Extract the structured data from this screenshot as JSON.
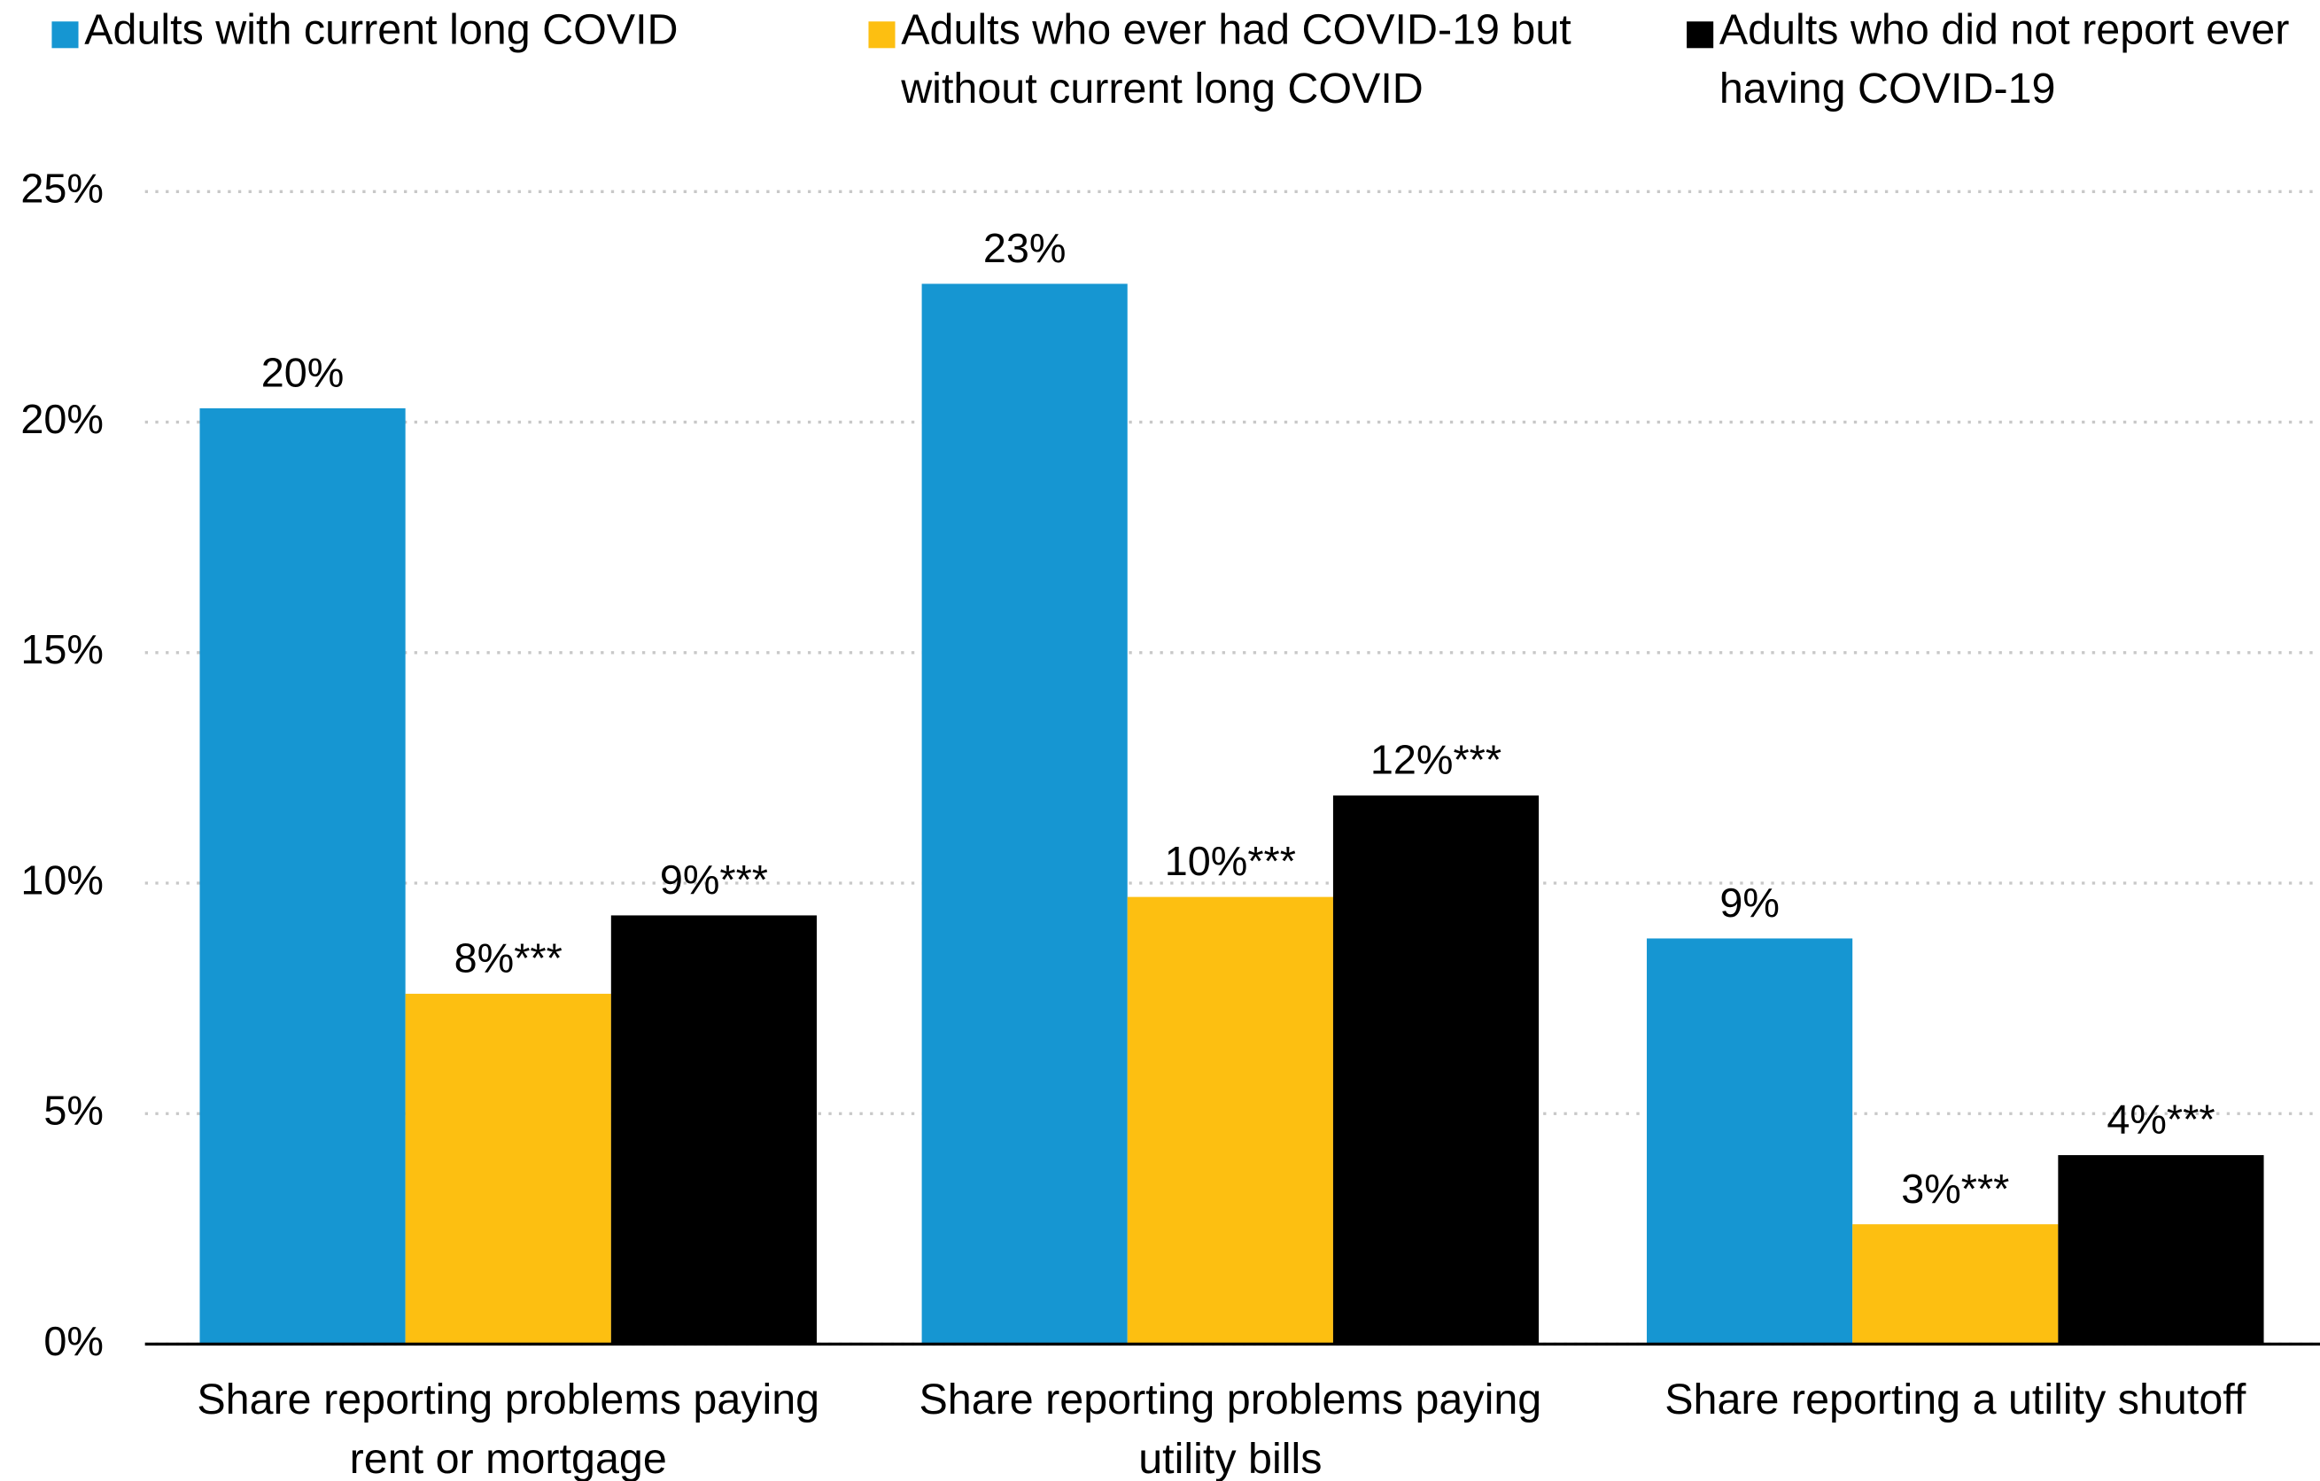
{
  "chart_data": {
    "type": "bar",
    "categories": [
      "Share reporting problems paying rent or mortgage",
      "Share reporting problems paying utility bills",
      "Share reporting a utility shutoff"
    ],
    "series": [
      {
        "name": "Adults with current long COVID",
        "color": "#1696d2",
        "values": [
          20.3,
          23.0,
          8.8
        ],
        "value_labels": [
          "20%",
          "23%",
          "9%"
        ]
      },
      {
        "name": "Adults who ever had COVID-19 but without current long COVID",
        "color": "#fdbf11",
        "values": [
          7.6,
          9.7,
          2.6
        ],
        "value_labels": [
          "8%***",
          "10%***",
          "3%***"
        ]
      },
      {
        "name": "Adults who did not report ever having COVID-19",
        "color": "#000000",
        "values": [
          9.3,
          11.9,
          4.1
        ],
        "value_labels": [
          "9%***",
          "12%***",
          "4%***"
        ]
      }
    ],
    "ylim": [
      0,
      25
    ],
    "yticks": [
      {
        "value": 0,
        "label": "0%"
      },
      {
        "value": 5,
        "label": "5%"
      },
      {
        "value": 10,
        "label": "10%"
      },
      {
        "value": 15,
        "label": "15%"
      },
      {
        "value": 20,
        "label": "20%"
      },
      {
        "value": 25,
        "label": "25%"
      }
    ],
    "grid": true,
    "legend": "top"
  }
}
